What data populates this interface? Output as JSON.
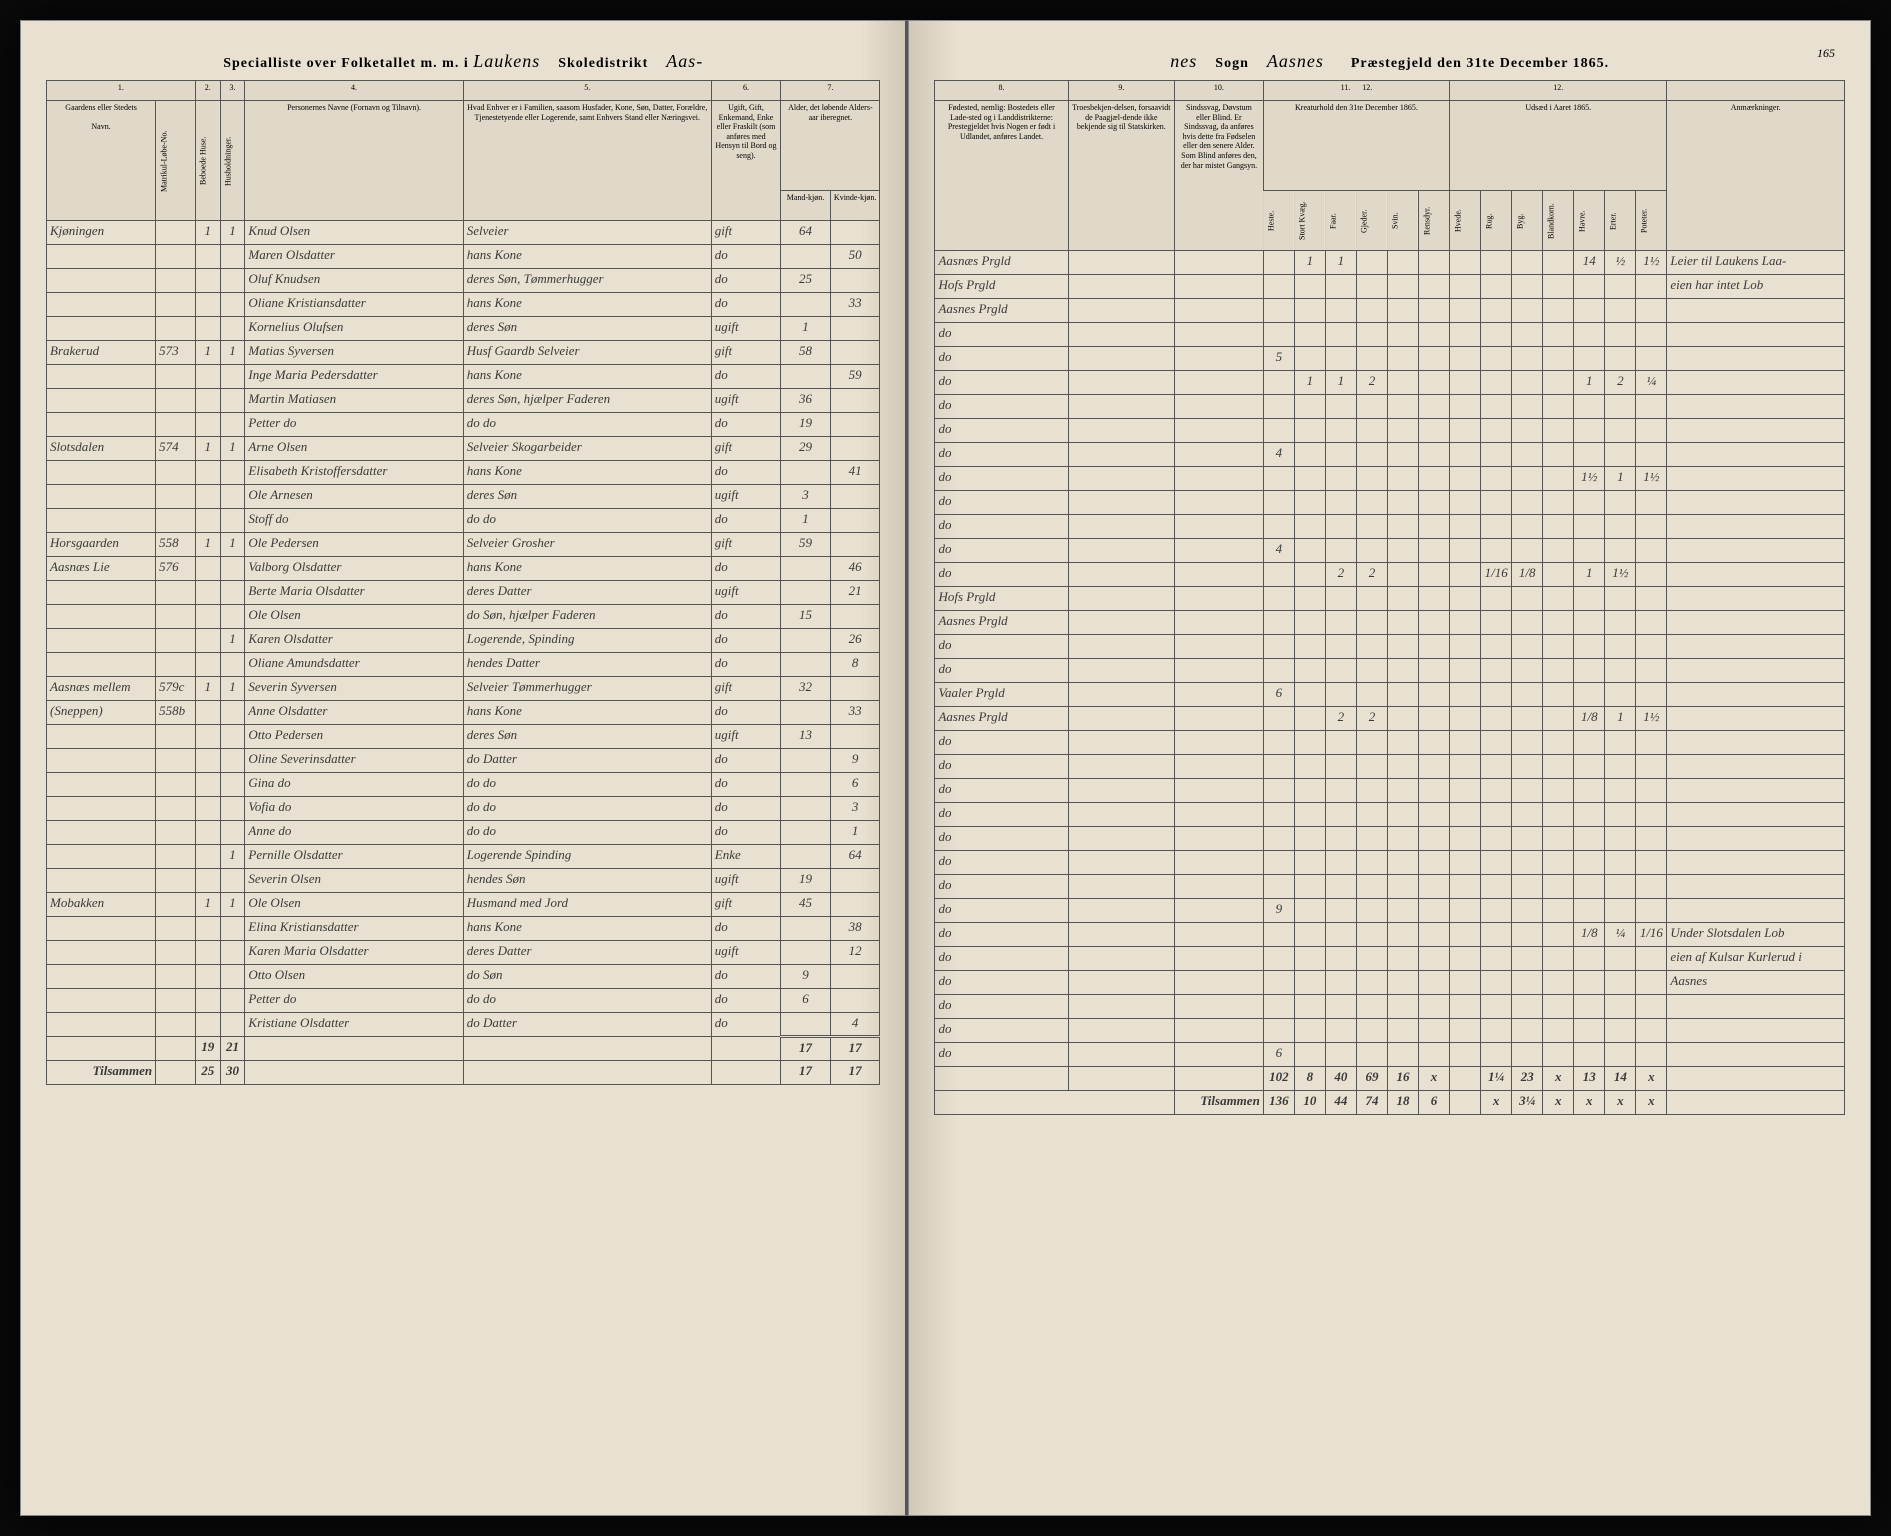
{
  "header": {
    "left_title_printed1": "Specialliste over Folketallet m. m. i",
    "left_district": "Laukens",
    "left_school_label": "Skoledistrikt",
    "left_parish_frag": "Aas-",
    "right_parish_frag": "nes",
    "right_sogn_label": "Sogn",
    "right_parish": "Aasnes",
    "right_date_label": "Præstegjeld den 31te December 1865.",
    "page_num": "165"
  },
  "columns_left": {
    "c1": "1.",
    "c2": "2.",
    "c3": "3.",
    "c4": "4.",
    "c5": "5.",
    "c6": "6.",
    "c7": "7.",
    "h_farm": "Gaardens eller Stedets",
    "h_farm_sub": "Navn.",
    "h_matr": "Matrikul-Løbe-No.",
    "h_cb1": "Beboede Huse.",
    "h_cb2": "Husholdninger.",
    "h_name": "Personernes Navne (Fornavn og Tilnavn).",
    "h_pos": "Hvad Enhver er i Familien, saasom Husfader, Kone, Søn, Datter, Forældre, Tjenestetyende eller Logerende, samt Enhvers Stand eller Næringsvei.",
    "h_marital": "Ugift, Gift, Enkemand, Enke eller Fraskilt (som anføres med Hensyn til Bord og seng).",
    "h_age": "Alder, det løbende Alders-aar iberegnet.",
    "h_age_m": "Mand-kjøn.",
    "h_age_f": "Kvinde-kjøn."
  },
  "columns_right": {
    "c8": "8.",
    "c9": "9.",
    "c10": "10.",
    "c11": "11.",
    "c12a": "12.",
    "c12b": "12.",
    "h_birth": "Fødested, nemlig: Bostedets eller Lade-sted og i Landdistrikterne: Prestegjeldet hvis Nogen er født i Udlandet, anføres Landet.",
    "h_trade": "Troesbekjen-delsen, forsaavidt de Paagjæl-dende ikke bekjende sig til Statskirken.",
    "h_cond": "Sindssvag, Døvstum eller Blind. Er Sindssvag, da anføres hvis dette fra Fødselen eller den senere Alder. Som Blind anføres den, der har mistet Gangsyn.",
    "h_live": "Kreaturhold den 31te December 1865.",
    "h_crop": "Udsæd i Aaret 1865.",
    "h_remarks": "Anmærkninger.",
    "live_cols": [
      "Heste.",
      "Stort Kvæg.",
      "Faar.",
      "Gjeder.",
      "Svin.",
      "Rensdyr."
    ],
    "crop_cols": [
      "Hvede.",
      "Rug.",
      "Byg.",
      "Blandkorn.",
      "Havre.",
      "Erter.",
      "Poteter."
    ]
  },
  "rows": [
    {
      "farm": "Kjøningen",
      "matr": "",
      "h": "1",
      "hh": "1",
      "name": "Knud Olsen",
      "pos": "Selveier",
      "mar": "gift",
      "am": "64",
      "af": "",
      "birth": "Aasnæs Prgld",
      "live": [
        "",
        "1",
        "1",
        "",
        "",
        ""
      ],
      "crop": [
        "",
        "",
        "",
        "",
        "14",
        "½",
        "1½"
      ],
      "rem": "Leier til Laukens Laa-"
    },
    {
      "farm": "",
      "matr": "",
      "h": "",
      "hh": "",
      "name": "Maren Olsdatter",
      "pos": "hans Kone",
      "mar": "do",
      "am": "",
      "af": "50",
      "birth": "Hofs Prgld",
      "live": [
        "",
        "",
        "",
        "",
        "",
        ""
      ],
      "crop": [
        "",
        "",
        "",
        "",
        "",
        "",
        ""
      ],
      "rem": "eien har intet Lob"
    },
    {
      "farm": "",
      "matr": "",
      "h": "",
      "hh": "",
      "name": "Oluf Knudsen",
      "pos": "deres Søn, Tømmerhugger",
      "mar": "do",
      "am": "25",
      "af": "",
      "birth": "Aasnes Prgld",
      "live": [
        "",
        "",
        "",
        "",
        "",
        ""
      ],
      "crop": [
        "",
        "",
        "",
        "",
        "",
        "",
        ""
      ],
      "rem": ""
    },
    {
      "farm": "",
      "matr": "",
      "h": "",
      "hh": "",
      "name": "Oliane Kristiansdatter",
      "pos": "hans Kone",
      "mar": "do",
      "am": "",
      "af": "33",
      "birth": "do",
      "live": [
        "",
        "",
        "",
        "",
        "",
        ""
      ],
      "crop": [
        "",
        "",
        "",
        "",
        "",
        "",
        ""
      ],
      "rem": ""
    },
    {
      "farm": "",
      "matr": "",
      "h": "",
      "hh": "",
      "name": "Kornelius Olufsen",
      "pos": "deres Søn",
      "mar": "ugift",
      "am": "1",
      "af": "",
      "birth": "do",
      "live": [
        "5",
        "",
        "",
        "",
        "",
        ""
      ],
      "crop": [
        "",
        "",
        "",
        "",
        "",
        "",
        ""
      ],
      "rem": ""
    },
    {
      "farm": "Brakerud",
      "matr": "573",
      "h": "1",
      "hh": "1",
      "name": "Matias Syversen",
      "pos": "Husf Gaardb Selveier",
      "mar": "gift",
      "am": "58",
      "af": "",
      "birth": "do",
      "live": [
        "",
        "1",
        "1",
        "2",
        "",
        ""
      ],
      "crop": [
        "",
        "",
        "",
        "",
        "1",
        "2",
        "¼"
      ],
      "rem": ""
    },
    {
      "farm": "",
      "matr": "",
      "h": "",
      "hh": "",
      "name": "Inge Maria Pedersdatter",
      "pos": "hans Kone",
      "mar": "do",
      "am": "",
      "af": "59",
      "birth": "do",
      "live": [
        "",
        "",
        "",
        "",
        "",
        ""
      ],
      "crop": [
        "",
        "",
        "",
        "",
        "",
        "",
        ""
      ],
      "rem": ""
    },
    {
      "farm": "",
      "matr": "",
      "h": "",
      "hh": "",
      "name": "Martin Matiasen",
      "pos": "deres Søn, hjælper Faderen",
      "mar": "ugift",
      "am": "36",
      "af": "",
      "birth": "do",
      "live": [
        "",
        "",
        "",
        "",
        "",
        ""
      ],
      "crop": [
        "",
        "",
        "",
        "",
        "",
        "",
        ""
      ],
      "rem": ""
    },
    {
      "farm": "",
      "matr": "",
      "h": "",
      "hh": "",
      "name": "Petter   do",
      "pos": "do   do",
      "mar": "do",
      "am": "19",
      "af": "",
      "birth": "do",
      "live": [
        "4",
        "",
        "",
        "",
        "",
        ""
      ],
      "crop": [
        "",
        "",
        "",
        "",
        "",
        "",
        ""
      ],
      "rem": ""
    },
    {
      "farm": "Slotsdalen",
      "matr": "574",
      "h": "1",
      "hh": "1",
      "name": "Arne Olsen",
      "pos": "Selveier Skogarbeider",
      "mar": "gift",
      "am": "29",
      "af": "",
      "birth": "do",
      "live": [
        "",
        "",
        "",
        "",
        "",
        ""
      ],
      "crop": [
        "",
        "",
        "",
        "",
        "1½",
        "1",
        "1½"
      ],
      "rem": ""
    },
    {
      "farm": "",
      "matr": "",
      "h": "",
      "hh": "",
      "name": "Elisabeth Kristoffersdatter",
      "pos": "hans Kone",
      "mar": "do",
      "am": "",
      "af": "41",
      "birth": "do",
      "live": [
        "",
        "",
        "",
        "",
        "",
        ""
      ],
      "crop": [
        "",
        "",
        "",
        "",
        "",
        "",
        ""
      ],
      "rem": ""
    },
    {
      "farm": "",
      "matr": "",
      "h": "",
      "hh": "",
      "name": "Ole Arnesen",
      "pos": "deres Søn",
      "mar": "ugift",
      "am": "3",
      "af": "",
      "birth": "do",
      "live": [
        "",
        "",
        "",
        "",
        "",
        ""
      ],
      "crop": [
        "",
        "",
        "",
        "",
        "",
        "",
        ""
      ],
      "rem": ""
    },
    {
      "farm": "",
      "matr": "",
      "h": "",
      "hh": "",
      "name": "Stoff  do",
      "pos": "do   do",
      "mar": "do",
      "am": "1",
      "af": "",
      "birth": "do",
      "live": [
        "4",
        "",
        "",
        "",
        "",
        ""
      ],
      "crop": [
        "",
        "",
        "",
        "",
        "",
        "",
        ""
      ],
      "rem": ""
    },
    {
      "farm": "Horsgaarden",
      "matr": "558",
      "h": "1",
      "hh": "1",
      "name": "Ole Pedersen",
      "pos": "Selveier Grosher",
      "mar": "gift",
      "am": "59",
      "af": "",
      "birth": "do",
      "live": [
        "",
        "",
        "2",
        "2",
        "",
        ""
      ],
      "crop": [
        "",
        "1/16",
        "1/8",
        "",
        "1",
        "1½",
        ""
      ],
      "rem": ""
    },
    {
      "farm": "Aasnæs Lie",
      "matr": "576",
      "h": "",
      "hh": "",
      "name": "Valborg Olsdatter",
      "pos": "hans Kone",
      "mar": "do",
      "am": "",
      "af": "46",
      "birth": "Hofs Prgld",
      "live": [
        "",
        "",
        "",
        "",
        "",
        ""
      ],
      "crop": [
        "",
        "",
        "",
        "",
        "",
        "",
        ""
      ],
      "rem": ""
    },
    {
      "farm": "",
      "matr": "",
      "h": "",
      "hh": "",
      "name": "Berte Maria Olsdatter",
      "pos": "deres Datter",
      "mar": "ugift",
      "am": "",
      "af": "21",
      "birth": "Aasnes Prgld",
      "live": [
        "",
        "",
        "",
        "",
        "",
        ""
      ],
      "crop": [
        "",
        "",
        "",
        "",
        "",
        "",
        ""
      ],
      "rem": ""
    },
    {
      "farm": "",
      "matr": "",
      "h": "",
      "hh": "",
      "name": "Ole Olsen",
      "pos": "do Søn, hjælper Faderen",
      "mar": "do",
      "am": "15",
      "af": "",
      "birth": "do",
      "live": [
        "",
        "",
        "",
        "",
        "",
        ""
      ],
      "crop": [
        "",
        "",
        "",
        "",
        "",
        "",
        ""
      ],
      "rem": ""
    },
    {
      "farm": "",
      "matr": "",
      "h": "",
      "hh": "1",
      "name": "Karen Olsdatter",
      "pos": "Logerende, Spinding",
      "mar": "do",
      "am": "",
      "af": "26",
      "birth": "do",
      "live": [
        "",
        "",
        "",
        "",
        "",
        ""
      ],
      "crop": [
        "",
        "",
        "",
        "",
        "",
        "",
        ""
      ],
      "rem": ""
    },
    {
      "farm": "",
      "matr": "",
      "h": "",
      "hh": "",
      "name": "Oliane Amundsdatter",
      "pos": "hendes Datter",
      "mar": "do",
      "am": "",
      "af": "8",
      "birth": "Vaaler Prgld",
      "live": [
        "6",
        "",
        "",
        "",
        "",
        ""
      ],
      "crop": [
        "",
        "",
        "",
        "",
        "",
        "",
        ""
      ],
      "rem": ""
    },
    {
      "farm": "Aasnæs mellem",
      "matr": "579c",
      "h": "1",
      "hh": "1",
      "name": "Severin Syversen",
      "pos": "Selveier Tømmerhugger",
      "mar": "gift",
      "am": "32",
      "af": "",
      "birth": "Aasnes Prgld",
      "live": [
        "",
        "",
        "2",
        "2",
        "",
        ""
      ],
      "crop": [
        "",
        "",
        "",
        "",
        "1/8",
        "1",
        "1½"
      ],
      "rem": ""
    },
    {
      "farm": "(Sneppen)",
      "matr": "558b",
      "h": "",
      "hh": "",
      "name": "Anne Olsdatter",
      "pos": "hans Kone",
      "mar": "do",
      "am": "",
      "af": "33",
      "birth": "do",
      "live": [
        "",
        "",
        "",
        "",
        "",
        ""
      ],
      "crop": [
        "",
        "",
        "",
        "",
        "",
        "",
        ""
      ],
      "rem": ""
    },
    {
      "farm": "",
      "matr": "",
      "h": "",
      "hh": "",
      "name": "Otto Pedersen",
      "pos": "deres Søn",
      "mar": "ugift",
      "am": "13",
      "af": "",
      "birth": "do",
      "live": [
        "",
        "",
        "",
        "",
        "",
        ""
      ],
      "crop": [
        "",
        "",
        "",
        "",
        "",
        "",
        ""
      ],
      "rem": ""
    },
    {
      "farm": "",
      "matr": "",
      "h": "",
      "hh": "",
      "name": "Oline Severinsdatter",
      "pos": "do Datter",
      "mar": "do",
      "am": "",
      "af": "9",
      "birth": "do",
      "live": [
        "",
        "",
        "",
        "",
        "",
        ""
      ],
      "crop": [
        "",
        "",
        "",
        "",
        "",
        "",
        ""
      ],
      "rem": ""
    },
    {
      "farm": "",
      "matr": "",
      "h": "",
      "hh": "",
      "name": "Gina   do",
      "pos": "do   do",
      "mar": "do",
      "am": "",
      "af": "6",
      "birth": "do",
      "live": [
        "",
        "",
        "",
        "",
        "",
        ""
      ],
      "crop": [
        "",
        "",
        "",
        "",
        "",
        "",
        ""
      ],
      "rem": ""
    },
    {
      "farm": "",
      "matr": "",
      "h": "",
      "hh": "",
      "name": "Vofia   do",
      "pos": "do   do",
      "mar": "do",
      "am": "",
      "af": "3",
      "birth": "do",
      "live": [
        "",
        "",
        "",
        "",
        "",
        ""
      ],
      "crop": [
        "",
        "",
        "",
        "",
        "",
        "",
        ""
      ],
      "rem": ""
    },
    {
      "farm": "",
      "matr": "",
      "h": "",
      "hh": "",
      "name": "Anne   do",
      "pos": "do   do",
      "mar": "do",
      "am": "",
      "af": "1",
      "birth": "do",
      "live": [
        "",
        "",
        "",
        "",
        "",
        ""
      ],
      "crop": [
        "",
        "",
        "",
        "",
        "",
        "",
        ""
      ],
      "rem": ""
    },
    {
      "farm": "",
      "matr": "",
      "h": "",
      "hh": "1",
      "name": "Pernille Olsdatter",
      "pos": "Logerende Spinding",
      "mar": "Enke",
      "am": "",
      "af": "64",
      "birth": "do",
      "live": [
        "",
        "",
        "",
        "",
        "",
        ""
      ],
      "crop": [
        "",
        "",
        "",
        "",
        "",
        "",
        ""
      ],
      "rem": ""
    },
    {
      "farm": "",
      "matr": "",
      "h": "",
      "hh": "",
      "name": "Severin Olsen",
      "pos": "hendes Søn",
      "mar": "ugift",
      "am": "19",
      "af": "",
      "birth": "do",
      "live": [
        "9",
        "",
        "",
        "",
        "",
        ""
      ],
      "crop": [
        "",
        "",
        "",
        "",
        "",
        "",
        ""
      ],
      "rem": ""
    },
    {
      "farm": "Mobakken",
      "matr": "",
      "h": "1",
      "hh": "1",
      "name": "Ole Olsen",
      "pos": "Husmand med Jord",
      "mar": "gift",
      "am": "45",
      "af": "",
      "birth": "do",
      "live": [
        "",
        "",
        "",
        "",
        "",
        ""
      ],
      "crop": [
        "",
        "",
        "",
        "",
        "1/8",
        "¼",
        "1/16"
      ],
      "rem": "Under Slotsdalen Lob"
    },
    {
      "farm": "",
      "matr": "",
      "h": "",
      "hh": "",
      "name": "Elina Kristiansdatter",
      "pos": "hans Kone",
      "mar": "do",
      "am": "",
      "af": "38",
      "birth": "do",
      "live": [
        "",
        "",
        "",
        "",
        "",
        ""
      ],
      "crop": [
        "",
        "",
        "",
        "",
        "",
        "",
        ""
      ],
      "rem": "eien af Kulsar Kurlerud i"
    },
    {
      "farm": "",
      "matr": "",
      "h": "",
      "hh": "",
      "name": "Karen Maria Olsdatter",
      "pos": "deres Datter",
      "mar": "ugift",
      "am": "",
      "af": "12",
      "birth": "do",
      "live": [
        "",
        "",
        "",
        "",
        "",
        ""
      ],
      "crop": [
        "",
        "",
        "",
        "",
        "",
        "",
        ""
      ],
      "rem": "Aasnes"
    },
    {
      "farm": "",
      "matr": "",
      "h": "",
      "hh": "",
      "name": "Otto Olsen",
      "pos": "do Søn",
      "mar": "do",
      "am": "9",
      "af": "",
      "birth": "do",
      "live": [
        "",
        "",
        "",
        "",
        "",
        ""
      ],
      "crop": [
        "",
        "",
        "",
        "",
        "",
        "",
        ""
      ],
      "rem": ""
    },
    {
      "farm": "",
      "matr": "",
      "h": "",
      "hh": "",
      "name": "Petter  do",
      "pos": "do   do",
      "mar": "do",
      "am": "6",
      "af": "",
      "birth": "do",
      "live": [
        "",
        "",
        "",
        "",
        "",
        ""
      ],
      "crop": [
        "",
        "",
        "",
        "",
        "",
        "",
        ""
      ],
      "rem": ""
    },
    {
      "farm": "",
      "matr": "",
      "h": "",
      "hh": "",
      "name": "Kristiane Olsdatter",
      "pos": "do Datter",
      "mar": "do",
      "am": "",
      "af": "4",
      "birth": "do",
      "live": [
        "6",
        "",
        "",
        "",
        "",
        ""
      ],
      "crop": [
        "",
        "",
        "",
        "",
        "",
        "",
        ""
      ],
      "rem": ""
    }
  ],
  "sums": {
    "carry": {
      "h": "19",
      "hh": "21",
      "am": "",
      "af": ""
    },
    "page": {
      "am": "17",
      "af": "17",
      "live": [
        "102",
        "8",
        "40",
        "69",
        "16",
        "x"
      ],
      "crop": [
        "",
        "1¼",
        "23",
        "x",
        "13",
        "14",
        "x"
      ]
    },
    "total_label_left": "Tilsammen",
    "total_label_right": "Tilsammen",
    "total": {
      "h": "25",
      "hh": "30",
      "live": [
        "136",
        "10",
        "44",
        "74",
        "18",
        "6"
      ],
      "crop": [
        "",
        "x",
        "3¼",
        "x",
        "x",
        "x",
        "x"
      ]
    }
  }
}
